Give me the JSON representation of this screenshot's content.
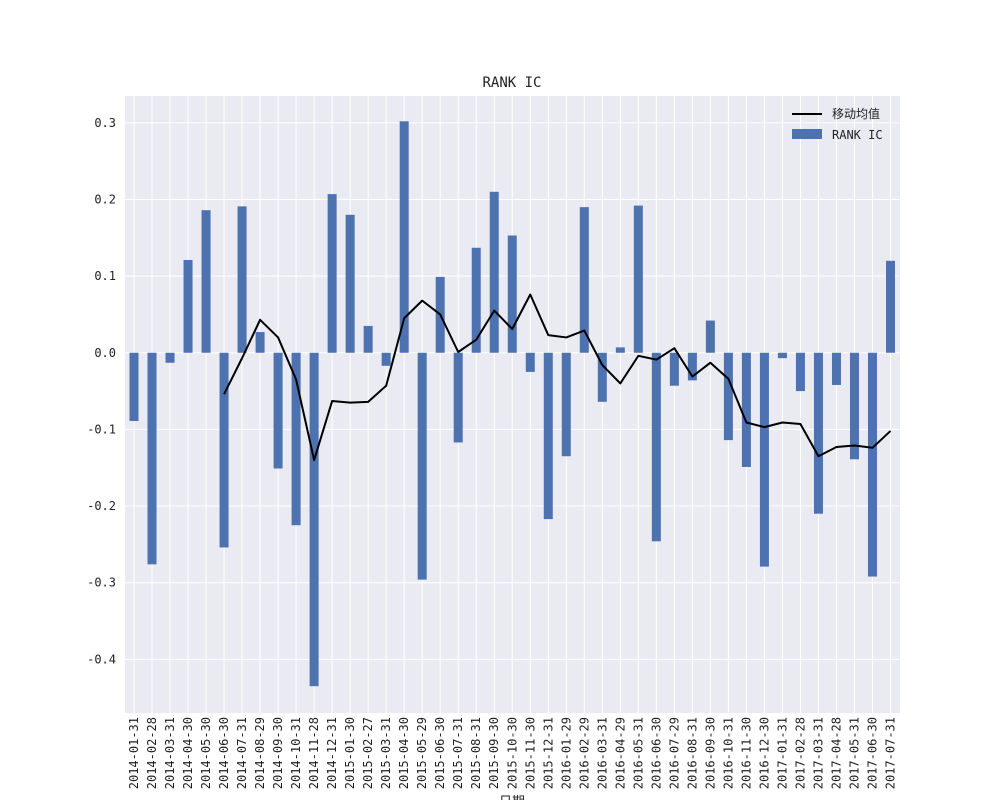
{
  "chart_data": {
    "type": "bar",
    "title": "RANK IC",
    "xlabel": "日期",
    "ylabel": "",
    "ylim": [
      -0.47,
      0.335
    ],
    "yticks": [
      -0.4,
      -0.3,
      -0.2,
      -0.1,
      0.0,
      0.1,
      0.2,
      0.3
    ],
    "ytick_labels": [
      "-0.4",
      "-0.3",
      "-0.2",
      "-0.1",
      "0.0",
      "0.1",
      "0.2",
      "0.3"
    ],
    "grid": true,
    "legend_position": "top-right",
    "categories": [
      "2014-01-31",
      "2014-02-28",
      "2014-03-31",
      "2014-04-30",
      "2014-05-30",
      "2014-06-30",
      "2014-07-31",
      "2014-08-29",
      "2014-09-30",
      "2014-10-31",
      "2014-11-28",
      "2014-12-31",
      "2015-01-30",
      "2015-02-27",
      "2015-03-31",
      "2015-04-30",
      "2015-05-29",
      "2015-06-30",
      "2015-07-31",
      "2015-08-31",
      "2015-09-30",
      "2015-10-30",
      "2015-11-30",
      "2015-12-31",
      "2016-01-29",
      "2016-02-29",
      "2016-03-31",
      "2016-04-29",
      "2016-05-31",
      "2016-06-30",
      "2016-07-29",
      "2016-08-31",
      "2016-09-30",
      "2016-10-31",
      "2016-11-30",
      "2016-12-30",
      "2017-01-31",
      "2017-02-28",
      "2017-03-31",
      "2017-04-28",
      "2017-05-31",
      "2017-06-30",
      "2017-07-31"
    ],
    "series": [
      {
        "name": "RANK IC",
        "kind": "bar",
        "color": "#4c72b0",
        "values": [
          -0.089,
          -0.276,
          -0.013,
          0.121,
          0.186,
          -0.254,
          0.191,
          0.027,
          -0.151,
          -0.225,
          -0.435,
          0.207,
          0.18,
          0.035,
          -0.017,
          0.302,
          -0.296,
          0.099,
          -0.117,
          0.137,
          0.21,
          0.153,
          -0.025,
          -0.217,
          -0.135,
          0.19,
          -0.064,
          0.007,
          0.192,
          -0.246,
          -0.043,
          -0.036,
          0.042,
          -0.114,
          -0.149,
          -0.279,
          -0.007,
          -0.05,
          -0.21,
          -0.042,
          -0.139,
          -0.292,
          0.12
        ]
      },
      {
        "name": "移动均值",
        "kind": "line",
        "color": "#000000",
        "values": [
          null,
          null,
          null,
          null,
          null,
          -0.054,
          -0.007,
          0.043,
          0.02,
          -0.035,
          -0.14,
          -0.063,
          -0.065,
          -0.064,
          -0.043,
          0.045,
          0.068,
          0.05,
          0.001,
          0.017,
          0.055,
          0.031,
          0.076,
          0.023,
          0.02,
          0.029,
          -0.016,
          -0.04,
          -0.004,
          -0.009,
          0.006,
          -0.031,
          -0.013,
          -0.034,
          -0.091,
          -0.097,
          -0.091,
          -0.093,
          -0.135,
          -0.123,
          -0.121,
          -0.124,
          -0.102
        ]
      }
    ]
  }
}
